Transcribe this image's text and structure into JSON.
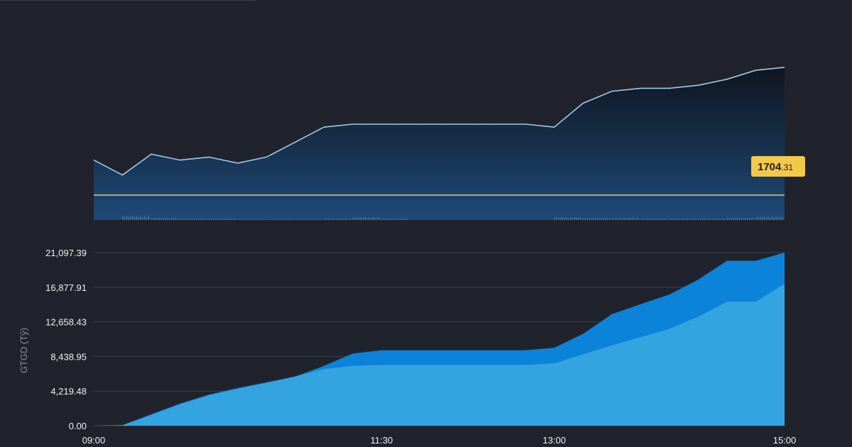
{
  "colors": {
    "background": "#21232c",
    "price_line": "#9ccbef",
    "reference_line": "#d7c472",
    "price_tag": "#f4c84a",
    "volume_bars": "#58779c",
    "lower_area_front": "#34a4e0",
    "lower_area_back": "#0a83d9",
    "gridline": "#3b3e48"
  },
  "chart_data": [
    {
      "type": "line",
      "title": "",
      "price_tag": {
        "int": "1704",
        "dec": ".31"
      },
      "reference_price": 1704.31,
      "x": [
        "09:00",
        "09:15",
        "09:30",
        "09:45",
        "10:00",
        "10:15",
        "10:30",
        "10:45",
        "11:00",
        "11:15",
        "11:30",
        "11:45",
        "12:00",
        "12:15",
        "12:30",
        "12:45",
        "13:00",
        "13:15",
        "13:30",
        "13:45",
        "14:00",
        "14:15",
        "14:30",
        "14:45",
        "15:00"
      ],
      "y": [
        1716,
        1711,
        1718,
        1716,
        1717,
        1715,
        1717,
        1722,
        1727,
        1728,
        1728,
        1728,
        1728,
        1728,
        1728,
        1728,
        1727,
        1735,
        1739,
        1740,
        1740,
        1741,
        1743,
        1746,
        1747
      ],
      "ylim": [
        1696,
        1751
      ],
      "volume_levels": [
        0,
        6,
        3,
        2,
        2,
        1,
        1,
        1,
        2,
        4,
        2,
        0,
        0,
        0,
        0,
        0,
        4,
        3,
        3,
        2,
        2,
        2,
        3,
        5,
        0
      ],
      "grid": false
    },
    {
      "type": "area",
      "title": "",
      "ylabel": "GTGD (Tỷ)",
      "x_ticks": [
        "09:00",
        "11:30",
        "13:00",
        "15:00"
      ],
      "y_ticks": [
        "0.00",
        "4,219.48",
        "8,438.95",
        "12,658.43",
        "16,877.91",
        "21,097.39"
      ],
      "ylim": [
        0,
        21097.39
      ],
      "x": [
        "09:00",
        "09:15",
        "09:30",
        "09:45",
        "10:00",
        "10:15",
        "10:30",
        "10:45",
        "11:00",
        "11:15",
        "11:30",
        "11:45",
        "12:00",
        "12:15",
        "12:30",
        "12:45",
        "13:00",
        "13:15",
        "13:30",
        "13:45",
        "14:00",
        "14:15",
        "14:30",
        "14:45",
        "15:00"
      ],
      "series": [
        {
          "values": [
            0,
            60,
            1400,
            2700,
            3800,
            4600,
            5300,
            6000,
            7300,
            8800,
            9200,
            9200,
            9200,
            9200,
            9200,
            9200,
            9500,
            11200,
            13600,
            14800,
            16000,
            17800,
            20100,
            20100,
            21097.39
          ]
        },
        {
          "values": [
            0,
            60,
            1300,
            2600,
            3700,
            4500,
            5200,
            6000,
            6900,
            7300,
            7400,
            7400,
            7400,
            7400,
            7400,
            7400,
            7600,
            8700,
            9800,
            10800,
            11800,
            13300,
            15100,
            15100,
            17300
          ]
        }
      ],
      "grid": true
    }
  ]
}
